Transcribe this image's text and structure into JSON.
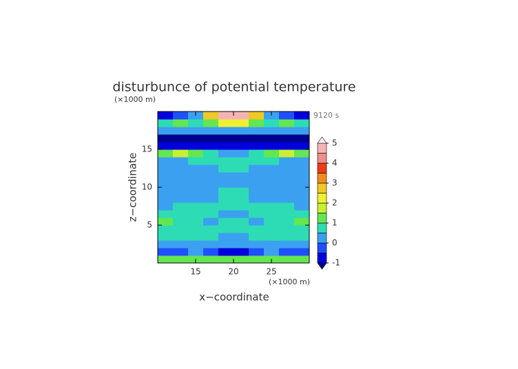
{
  "chart_data": {
    "type": "contour",
    "title": "disturbunce of potential temperature",
    "y_unit": "(×1000 m)",
    "x_unit": "(×1000 m)",
    "time_label": "9120 s",
    "xlabel": "x−coordinate",
    "ylabel": "z−coordinate",
    "xlim": [
      10,
      30
    ],
    "ylim": [
      0,
      20
    ],
    "xticks": [
      15,
      20,
      25
    ],
    "yticks": [
      5,
      10,
      15
    ],
    "x": [
      11,
      13,
      15,
      17,
      19,
      21,
      23,
      25,
      27,
      29
    ],
    "z": [
      0.5,
      1.5,
      2.5,
      3.5,
      4.5,
      5.5,
      6.5,
      7.5,
      8.5,
      9.5,
      10.5,
      11.5,
      12.5,
      13.5,
      14.5,
      15.5,
      16.5,
      17.5,
      18.5,
      19.5
    ],
    "values": [
      [
        1.2,
        1.2,
        1.2,
        1.2,
        1.2,
        1.2,
        1.2,
        1.2,
        1.2,
        1.2
      ],
      [
        -0.2,
        -0.2,
        0.2,
        -0.2,
        -0.6,
        -0.6,
        -0.2,
        0.2,
        -0.2,
        -0.2
      ],
      [
        0.3,
        0.3,
        0.3,
        0.3,
        0.3,
        0.3,
        0.3,
        0.3,
        0.3,
        0.3
      ],
      [
        0.8,
        0.8,
        0.8,
        0.8,
        0.3,
        0.3,
        0.8,
        0.8,
        0.8,
        0.8
      ],
      [
        0.8,
        0.8,
        0.8,
        0.8,
        0.8,
        0.8,
        0.8,
        0.8,
        0.8,
        0.8
      ],
      [
        1.2,
        0.8,
        0.8,
        0.3,
        0.8,
        0.8,
        0.3,
        0.8,
        0.8,
        1.2
      ],
      [
        0.8,
        0.8,
        0.8,
        0.8,
        0.3,
        0.3,
        0.8,
        0.8,
        0.8,
        0.8
      ],
      [
        0.3,
        0.8,
        0.8,
        0.8,
        0.8,
        0.8,
        0.8,
        0.8,
        0.8,
        0.3
      ],
      [
        0.3,
        0.3,
        0.3,
        0.3,
        0.8,
        0.8,
        0.3,
        0.3,
        0.3,
        0.3
      ],
      [
        0.3,
        0.3,
        0.3,
        0.3,
        0.8,
        0.8,
        0.3,
        0.3,
        0.3,
        0.3
      ],
      [
        0.3,
        0.3,
        0.3,
        0.3,
        0.3,
        0.3,
        0.3,
        0.3,
        0.3,
        0.3
      ],
      [
        0.3,
        0.3,
        0.3,
        0.3,
        0.3,
        0.3,
        0.3,
        0.3,
        0.3,
        0.3
      ],
      [
        0.3,
        0.3,
        0.3,
        0.3,
        0.8,
        0.8,
        0.3,
        0.3,
        0.3,
        0.3
      ],
      [
        0.3,
        0.3,
        0.8,
        0.8,
        0.8,
        0.8,
        0.8,
        0.8,
        0.3,
        0.3
      ],
      [
        1.2,
        1.7,
        1.2,
        0.8,
        0.3,
        0.3,
        0.8,
        1.2,
        1.7,
        1.2
      ],
      [
        -0.6,
        -0.6,
        -0.6,
        -0.6,
        -0.6,
        -0.6,
        -0.6,
        -0.6,
        -0.6,
        -0.6
      ],
      [
        -1.2,
        -1.2,
        -1.2,
        -1.2,
        -1.2,
        -1.2,
        -1.2,
        -1.2,
        -1.2,
        -1.2
      ],
      [
        0.3,
        0.3,
        0.3,
        0.3,
        0.3,
        0.3,
        0.3,
        0.3,
        0.3,
        0.3
      ],
      [
        0.8,
        1.2,
        0.8,
        1.2,
        2.2,
        2.2,
        1.2,
        0.8,
        1.2,
        0.8
      ],
      [
        -0.7,
        -0.3,
        0.3,
        2.7,
        4.7,
        4.7,
        2.7,
        0.3,
        -0.3,
        -0.7
      ]
    ],
    "levels": [
      -1,
      -0.5,
      0,
      0.5,
      1,
      1.5,
      2,
      2.5,
      3,
      3.5,
      4,
      4.5,
      5
    ],
    "colors": [
      "#00008c",
      "#0000dc",
      "#1e50ff",
      "#3ca0f0",
      "#2ddcb4",
      "#64e650",
      "#c8f032",
      "#f0f032",
      "#f0c828",
      "#f08c1e",
      "#f03c14",
      "#f08c8c",
      "#f5b4b4",
      "#fff0f0"
    ],
    "colorbar_ticks": [
      -1,
      0,
      1,
      2,
      3,
      4,
      5
    ]
  }
}
